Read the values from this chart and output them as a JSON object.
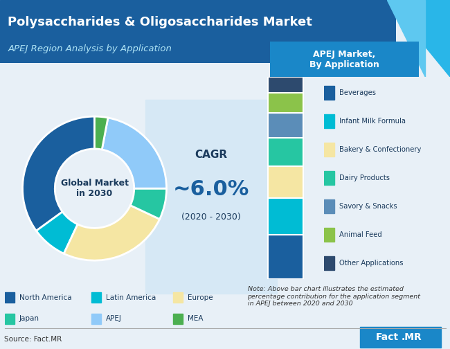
{
  "title": "Polysaccharides & Oligosaccharides Market",
  "subtitle": "APEJ Region Analysis by Application",
  "header_bg": "#1a5f9e",
  "header_text_color": "#ffffff",
  "subtitle_text_color": "#aed6f1",
  "bg_color": "#f0f4f8",
  "cagr_text": "CAGR",
  "cagr_value": "~6.0%",
  "cagr_sub": "(2020 - 2030)",
  "donut_center_text": "Global Market\nin 2030",
  "donut_segments": [
    {
      "label": "North America",
      "value": 35,
      "color": "#1a5f9e"
    },
    {
      "label": "Latin America",
      "value": 8,
      "color": "#00bcd4"
    },
    {
      "label": "Europe",
      "value": 25,
      "color": "#f5e6a3"
    },
    {
      "label": "Japan",
      "value": 7,
      "color": "#26c6a2"
    },
    {
      "label": "APEJ",
      "value": 22,
      "color": "#90caf9"
    },
    {
      "label": "MEA",
      "value": 3,
      "color": "#4caf50"
    }
  ],
  "bar_segments": [
    {
      "label": "Beverages",
      "color": "#1a5f9e"
    },
    {
      "label": "Infant Milk Formula",
      "color": "#00bcd4"
    },
    {
      "label": "Bakery &\nConfectionery",
      "color": "#f5e6a3"
    },
    {
      "label": "Dairy Products",
      "color": "#26c6a2"
    },
    {
      "label": "Savory & Snacks",
      "color": "#5b8db8"
    },
    {
      "label": "Animal Feed",
      "color": "#8bc34a"
    },
    {
      "label": "Other Applications",
      "color": "#2d4a6e"
    }
  ],
  "bar_values": [
    22,
    18,
    16,
    14,
    12,
    10,
    8
  ],
  "apej_box_color": "#1a87c8",
  "apej_box_text": "APEJ Market,\nBy Application",
  "note_text": "Note: Above bar chart illustrates the estimated\npercentage contribution for the application segment\nin APEJ between 2020 and 2030",
  "source_text": "Source: Fact.MR",
  "factmr_bg": "#1a87c8",
  "factmr_text": "Fact.MR"
}
